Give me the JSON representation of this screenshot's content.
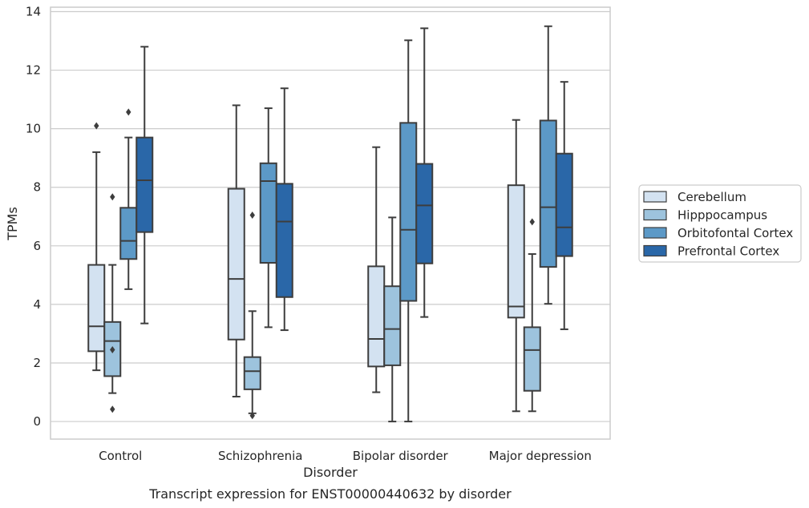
{
  "chart_data": {
    "type": "box",
    "title": "",
    "caption": "Transcript expression for ENST00000440632 by disorder",
    "xlabel": "Disorder",
    "ylabel": "TPMs",
    "ylim": [
      -0.6,
      14.15
    ],
    "yticks": [
      0,
      2,
      4,
      6,
      8,
      10,
      12,
      14
    ],
    "grid": "horizontal",
    "legend_position": "right",
    "categories": [
      "Control",
      "Schizophrenia",
      "Bipolar disorder",
      "Major depression"
    ],
    "series": [
      {
        "name": "Cerebellum",
        "color": "#d3e2f1",
        "boxes": [
          {
            "whisker_low": 1.75,
            "q1": 2.4,
            "median": 3.25,
            "q3": 5.35,
            "whisker_high": 9.2,
            "outliers": [
              10.1
            ]
          },
          {
            "whisker_low": 0.85,
            "q1": 2.8,
            "median": 4.87,
            "q3": 7.95,
            "whisker_high": 10.8,
            "outliers": []
          },
          {
            "whisker_low": 1.0,
            "q1": 1.88,
            "median": 2.82,
            "q3": 5.3,
            "whisker_high": 9.37,
            "outliers": []
          },
          {
            "whisker_low": 0.35,
            "q1": 3.55,
            "median": 3.93,
            "q3": 8.07,
            "whisker_high": 10.3,
            "outliers": []
          }
        ]
      },
      {
        "name": "Hipppocampus",
        "color": "#9dc3dd",
        "boxes": [
          {
            "whisker_low": 0.97,
            "q1": 1.55,
            "median": 2.75,
            "q3": 3.4,
            "whisker_high": 5.35,
            "outliers": [
              7.67,
              2.45,
              0.42
            ]
          },
          {
            "whisker_low": 0.28,
            "q1": 1.1,
            "median": 1.72,
            "q3": 2.2,
            "whisker_high": 3.77,
            "outliers": [
              7.05,
              0.2
            ]
          },
          {
            "whisker_low": 0.0,
            "q1": 1.92,
            "median": 3.16,
            "q3": 4.62,
            "whisker_high": 6.97,
            "outliers": []
          },
          {
            "whisker_low": 0.35,
            "q1": 1.05,
            "median": 2.44,
            "q3": 3.22,
            "whisker_high": 5.72,
            "outliers": [
              6.82
            ]
          }
        ]
      },
      {
        "name": "Orbitofontal Cortex",
        "color": "#5c99c7",
        "boxes": [
          {
            "whisker_low": 4.52,
            "q1": 5.55,
            "median": 6.17,
            "q3": 7.3,
            "whisker_high": 9.7,
            "outliers": [
              10.57
            ]
          },
          {
            "whisker_low": 3.22,
            "q1": 5.42,
            "median": 8.21,
            "q3": 8.82,
            "whisker_high": 10.7,
            "outliers": []
          },
          {
            "whisker_low": 0.0,
            "q1": 4.12,
            "median": 6.55,
            "q3": 10.2,
            "whisker_high": 13.02,
            "outliers": []
          },
          {
            "whisker_low": 4.02,
            "q1": 5.28,
            "median": 7.32,
            "q3": 10.28,
            "whisker_high": 13.5,
            "outliers": []
          }
        ]
      },
      {
        "name": "Prefrontal Cortex",
        "color": "#2a67a8",
        "boxes": [
          {
            "whisker_low": 3.35,
            "q1": 6.47,
            "median": 8.24,
            "q3": 9.7,
            "whisker_high": 12.8,
            "outliers": []
          },
          {
            "whisker_low": 3.12,
            "q1": 4.25,
            "median": 6.83,
            "q3": 8.12,
            "whisker_high": 11.38,
            "outliers": []
          },
          {
            "whisker_low": 3.57,
            "q1": 5.4,
            "median": 7.38,
            "q3": 8.8,
            "whisker_high": 13.43,
            "outliers": []
          },
          {
            "whisker_low": 3.15,
            "q1": 5.65,
            "median": 6.63,
            "q3": 9.15,
            "whisker_high": 11.6,
            "outliers": []
          }
        ]
      }
    ]
  }
}
